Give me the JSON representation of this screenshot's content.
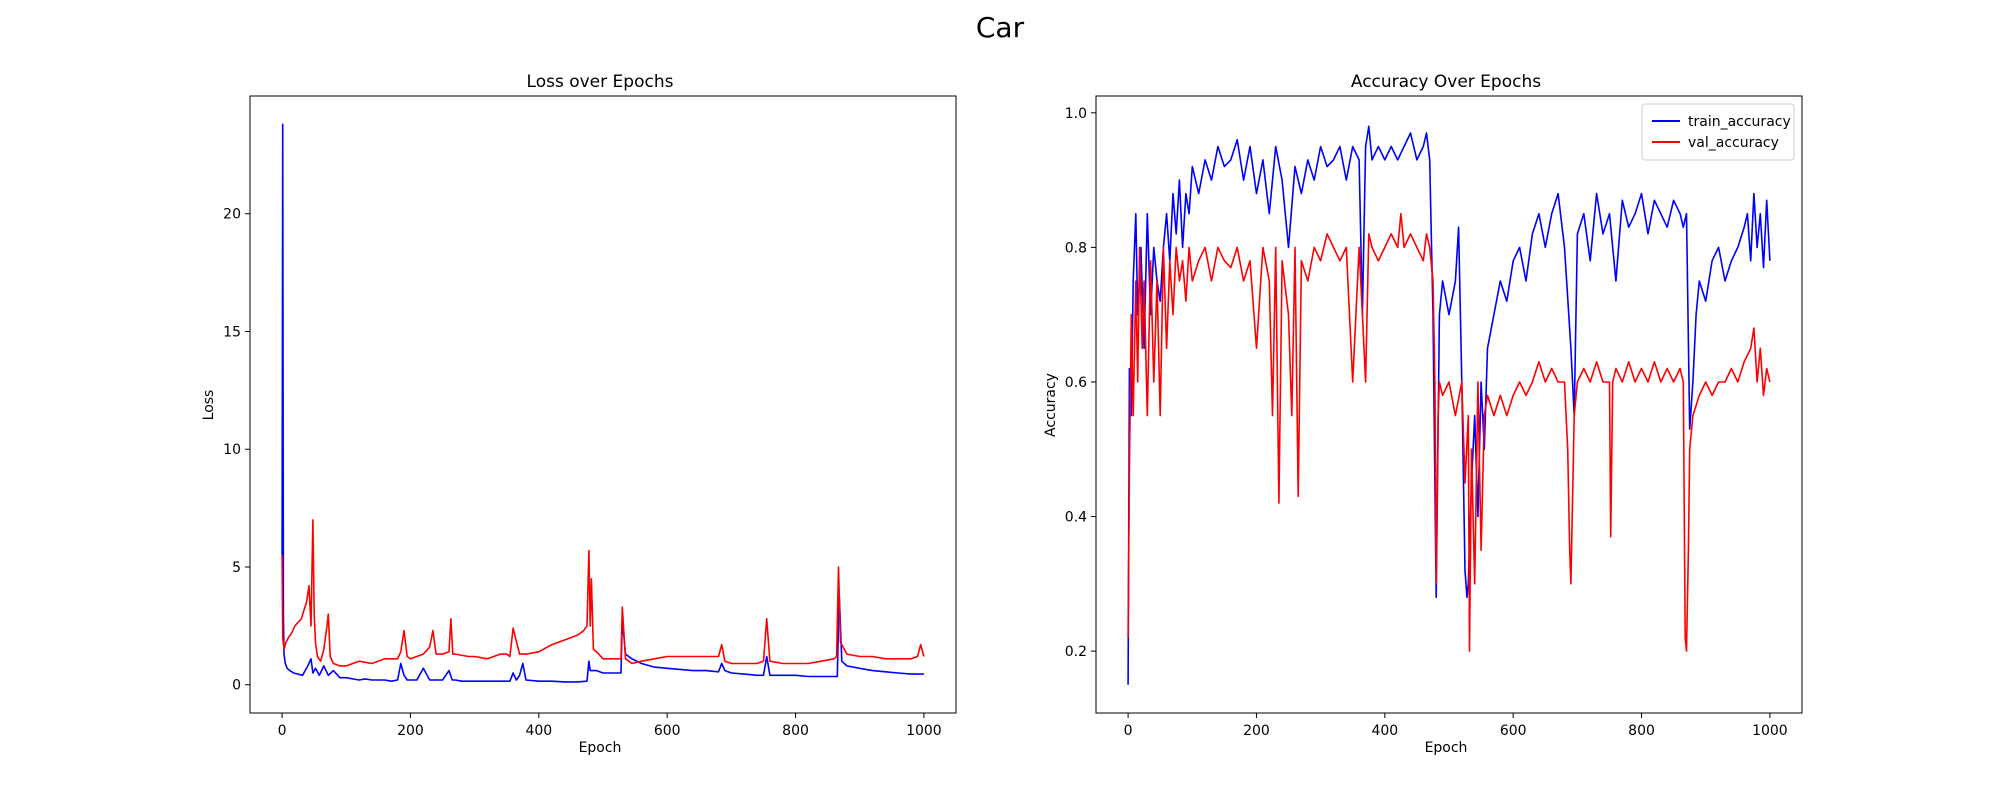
{
  "figure": {
    "title": "Car"
  },
  "chart_data": [
    {
      "type": "line",
      "title": "Loss over Epochs",
      "xlabel": "Epoch",
      "ylabel": "Loss",
      "xlim": [
        -50,
        1050
      ],
      "ylim": [
        -1.2,
        25.0
      ],
      "xticks": [
        0,
        200,
        400,
        600,
        800,
        1000
      ],
      "yticks": [
        0,
        5,
        10,
        15,
        20
      ],
      "legend": null,
      "grid": false,
      "series": [
        {
          "color": "#0000ff",
          "x": [
            0,
            1,
            2,
            3,
            5,
            8,
            12,
            18,
            25,
            32,
            40,
            45,
            48,
            52,
            58,
            65,
            72,
            80,
            90,
            100,
            110,
            120,
            130,
            140,
            150,
            160,
            170,
            180,
            185,
            190,
            195,
            200,
            210,
            220,
            230,
            240,
            250,
            260,
            265,
            270,
            280,
            300,
            320,
            340,
            355,
            360,
            365,
            370,
            375,
            380,
            400,
            420,
            440,
            460,
            475,
            478,
            480,
            485,
            490,
            500,
            520,
            528,
            530,
            535,
            545,
            560,
            580,
            600,
            620,
            640,
            660,
            680,
            685,
            690,
            700,
            720,
            740,
            750,
            755,
            760,
            780,
            800,
            820,
            840,
            860,
            865,
            868,
            872,
            880,
            900,
            920,
            940,
            960,
            980,
            1000
          ],
          "values": [
            5.5,
            23.8,
            3.0,
            1.3,
            0.9,
            0.7,
            0.6,
            0.5,
            0.45,
            0.4,
            0.8,
            1.1,
            0.5,
            0.7,
            0.4,
            0.8,
            0.4,
            0.6,
            0.3,
            0.3,
            0.25,
            0.2,
            0.25,
            0.2,
            0.2,
            0.2,
            0.15,
            0.2,
            0.9,
            0.4,
            0.2,
            0.2,
            0.2,
            0.7,
            0.2,
            0.2,
            0.2,
            0.6,
            0.2,
            0.2,
            0.15,
            0.15,
            0.15,
            0.15,
            0.15,
            0.5,
            0.2,
            0.4,
            0.9,
            0.2,
            0.15,
            0.15,
            0.12,
            0.12,
            0.15,
            1.0,
            0.6,
            0.6,
            0.6,
            0.5,
            0.5,
            0.5,
            2.8,
            1.3,
            1.1,
            0.9,
            0.75,
            0.7,
            0.65,
            0.6,
            0.6,
            0.55,
            0.9,
            0.6,
            0.5,
            0.45,
            0.4,
            0.4,
            1.2,
            0.4,
            0.4,
            0.4,
            0.35,
            0.35,
            0.35,
            0.35,
            3.9,
            1.0,
            0.8,
            0.7,
            0.6,
            0.55,
            0.5,
            0.45,
            0.45
          ]
        },
        {
          "color": "#ff0000",
          "x": [
            0,
            1,
            3,
            6,
            10,
            15,
            20,
            30,
            38,
            42,
            45,
            48,
            50,
            52,
            55,
            60,
            65,
            70,
            72,
            75,
            80,
            90,
            100,
            120,
            140,
            160,
            180,
            185,
            190,
            195,
            200,
            220,
            230,
            235,
            240,
            250,
            260,
            263,
            266,
            270,
            290,
            300,
            320,
            340,
            350,
            355,
            360,
            370,
            380,
            400,
            420,
            440,
            460,
            470,
            475,
            478,
            480,
            482,
            485,
            490,
            500,
            520,
            528,
            530,
            535,
            545,
            560,
            580,
            600,
            620,
            640,
            660,
            680,
            685,
            690,
            700,
            720,
            740,
            750,
            755,
            760,
            780,
            800,
            820,
            840,
            860,
            864,
            867,
            870,
            880,
            900,
            920,
            940,
            960,
            980,
            990,
            995,
            1000
          ],
          "values": [
            5.5,
            2.0,
            1.5,
            1.8,
            2.0,
            2.2,
            2.5,
            2.8,
            3.5,
            4.2,
            2.5,
            7.0,
            3.0,
            1.8,
            1.2,
            1.0,
            1.5,
            2.5,
            3.0,
            1.2,
            0.9,
            0.8,
            0.8,
            1.0,
            0.9,
            1.1,
            1.1,
            1.4,
            2.3,
            1.2,
            1.1,
            1.3,
            1.6,
            2.3,
            1.3,
            1.3,
            1.4,
            2.8,
            1.3,
            1.3,
            1.2,
            1.2,
            1.1,
            1.3,
            1.3,
            1.2,
            2.4,
            1.3,
            1.3,
            1.4,
            1.7,
            1.9,
            2.1,
            2.3,
            2.5,
            5.7,
            2.5,
            4.5,
            1.5,
            1.4,
            1.1,
            1.1,
            1.1,
            3.3,
            1.1,
            0.9,
            1.0,
            1.1,
            1.2,
            1.2,
            1.2,
            1.2,
            1.2,
            1.7,
            1.0,
            0.9,
            0.9,
            0.9,
            1.0,
            2.8,
            1.0,
            0.9,
            0.9,
            0.9,
            1.0,
            1.1,
            1.2,
            5.0,
            1.8,
            1.3,
            1.2,
            1.2,
            1.1,
            1.1,
            1.1,
            1.2,
            1.7,
            1.2
          ]
        }
      ]
    },
    {
      "type": "line",
      "title": "Accuracy Over Epochs",
      "xlabel": "Epoch",
      "ylabel": "Accuracy",
      "xlim": [
        -50,
        1050
      ],
      "ylim": [
        0.108,
        1.025
      ],
      "xticks": [
        0,
        200,
        400,
        600,
        800,
        1000
      ],
      "yticks": [
        0.2,
        0.4,
        0.6,
        0.8,
        1.0
      ],
      "legend": "top-right",
      "grid": false,
      "series": [
        {
          "name": "train_accuracy",
          "color": "#0000ff",
          "x": [
            0,
            2,
            5,
            8,
            12,
            15,
            20,
            25,
            30,
            35,
            40,
            45,
            50,
            55,
            60,
            65,
            70,
            75,
            80,
            85,
            90,
            95,
            100,
            110,
            120,
            130,
            140,
            150,
            160,
            170,
            180,
            190,
            200,
            210,
            220,
            230,
            240,
            250,
            260,
            270,
            280,
            290,
            300,
            310,
            320,
            330,
            340,
            350,
            360,
            365,
            370,
            375,
            380,
            390,
            400,
            410,
            420,
            430,
            440,
            450,
            460,
            465,
            470,
            475,
            480,
            485,
            490,
            500,
            510,
            515,
            520,
            525,
            528,
            530,
            535,
            540,
            545,
            550,
            555,
            560,
            570,
            580,
            590,
            600,
            610,
            620,
            630,
            640,
            650,
            660,
            670,
            680,
            690,
            695,
            700,
            710,
            720,
            730,
            740,
            750,
            755,
            760,
            770,
            780,
            790,
            800,
            810,
            820,
            830,
            840,
            850,
            860,
            865,
            870,
            875,
            880,
            885,
            890,
            900,
            910,
            920,
            930,
            940,
            950,
            960,
            965,
            970,
            975,
            980,
            985,
            990,
            995,
            1000
          ],
          "values": [
            0.15,
            0.62,
            0.55,
            0.75,
            0.85,
            0.7,
            0.8,
            0.65,
            0.85,
            0.7,
            0.8,
            0.75,
            0.72,
            0.8,
            0.85,
            0.78,
            0.88,
            0.82,
            0.9,
            0.8,
            0.88,
            0.85,
            0.92,
            0.88,
            0.93,
            0.9,
            0.95,
            0.92,
            0.93,
            0.96,
            0.9,
            0.95,
            0.88,
            0.93,
            0.85,
            0.95,
            0.9,
            0.8,
            0.92,
            0.88,
            0.93,
            0.9,
            0.95,
            0.92,
            0.93,
            0.95,
            0.9,
            0.95,
            0.93,
            0.7,
            0.95,
            0.98,
            0.93,
            0.95,
            0.93,
            0.95,
            0.93,
            0.95,
            0.97,
            0.93,
            0.95,
            0.97,
            0.93,
            0.7,
            0.28,
            0.7,
            0.75,
            0.7,
            0.75,
            0.83,
            0.6,
            0.32,
            0.28,
            0.3,
            0.45,
            0.55,
            0.4,
            0.6,
            0.5,
            0.65,
            0.7,
            0.75,
            0.72,
            0.78,
            0.8,
            0.75,
            0.82,
            0.85,
            0.8,
            0.85,
            0.88,
            0.8,
            0.65,
            0.55,
            0.82,
            0.85,
            0.78,
            0.88,
            0.82,
            0.85,
            0.8,
            0.75,
            0.87,
            0.83,
            0.85,
            0.88,
            0.82,
            0.87,
            0.85,
            0.83,
            0.87,
            0.85,
            0.83,
            0.85,
            0.53,
            0.6,
            0.7,
            0.75,
            0.72,
            0.78,
            0.8,
            0.75,
            0.78,
            0.8,
            0.83,
            0.85,
            0.78,
            0.88,
            0.8,
            0.85,
            0.77,
            0.87,
            0.78
          ]
        },
        {
          "name": "val_accuracy",
          "color": "#ff0000",
          "x": [
            0,
            2,
            5,
            8,
            12,
            15,
            18,
            22,
            25,
            30,
            35,
            40,
            45,
            50,
            55,
            60,
            65,
            70,
            75,
            80,
            85,
            90,
            95,
            100,
            110,
            120,
            130,
            140,
            150,
            160,
            170,
            180,
            190,
            200,
            210,
            220,
            225,
            230,
            235,
            240,
            250,
            255,
            260,
            265,
            270,
            280,
            290,
            300,
            310,
            320,
            330,
            340,
            350,
            360,
            365,
            370,
            375,
            380,
            390,
            400,
            410,
            420,
            425,
            430,
            440,
            450,
            460,
            465,
            470,
            475,
            478,
            480,
            483,
            485,
            490,
            500,
            510,
            520,
            525,
            530,
            532,
            535,
            540,
            545,
            550,
            555,
            560,
            570,
            580,
            590,
            600,
            610,
            620,
            630,
            640,
            650,
            660,
            670,
            680,
            685,
            688,
            690,
            695,
            700,
            710,
            720,
            730,
            740,
            750,
            752,
            755,
            760,
            770,
            780,
            790,
            800,
            810,
            820,
            830,
            840,
            850,
            860,
            865,
            868,
            870,
            873,
            875,
            880,
            890,
            900,
            910,
            920,
            930,
            940,
            950,
            960,
            970,
            975,
            980,
            985,
            990,
            995,
            1000
          ],
          "values": [
            0.22,
            0.47,
            0.7,
            0.55,
            0.75,
            0.6,
            0.8,
            0.65,
            0.75,
            0.55,
            0.78,
            0.6,
            0.75,
            0.55,
            0.8,
            0.65,
            0.78,
            0.7,
            0.8,
            0.75,
            0.78,
            0.72,
            0.8,
            0.75,
            0.78,
            0.8,
            0.75,
            0.8,
            0.78,
            0.77,
            0.8,
            0.75,
            0.78,
            0.65,
            0.8,
            0.75,
            0.55,
            0.8,
            0.42,
            0.78,
            0.7,
            0.55,
            0.8,
            0.43,
            0.78,
            0.75,
            0.8,
            0.78,
            0.82,
            0.8,
            0.78,
            0.8,
            0.6,
            0.8,
            0.7,
            0.6,
            0.82,
            0.8,
            0.78,
            0.8,
            0.82,
            0.8,
            0.85,
            0.8,
            0.82,
            0.8,
            0.78,
            0.82,
            0.8,
            0.75,
            0.6,
            0.3,
            0.55,
            0.6,
            0.58,
            0.6,
            0.55,
            0.6,
            0.45,
            0.55,
            0.2,
            0.5,
            0.3,
            0.6,
            0.35,
            0.55,
            0.58,
            0.55,
            0.58,
            0.55,
            0.58,
            0.6,
            0.58,
            0.6,
            0.63,
            0.6,
            0.62,
            0.6,
            0.6,
            0.5,
            0.35,
            0.3,
            0.55,
            0.6,
            0.62,
            0.6,
            0.63,
            0.6,
            0.6,
            0.37,
            0.6,
            0.62,
            0.6,
            0.63,
            0.6,
            0.62,
            0.6,
            0.63,
            0.6,
            0.62,
            0.6,
            0.62,
            0.6,
            0.22,
            0.2,
            0.35,
            0.5,
            0.55,
            0.58,
            0.6,
            0.58,
            0.6,
            0.6,
            0.62,
            0.6,
            0.63,
            0.65,
            0.68,
            0.6,
            0.65,
            0.58,
            0.62,
            0.6
          ]
        }
      ]
    }
  ]
}
